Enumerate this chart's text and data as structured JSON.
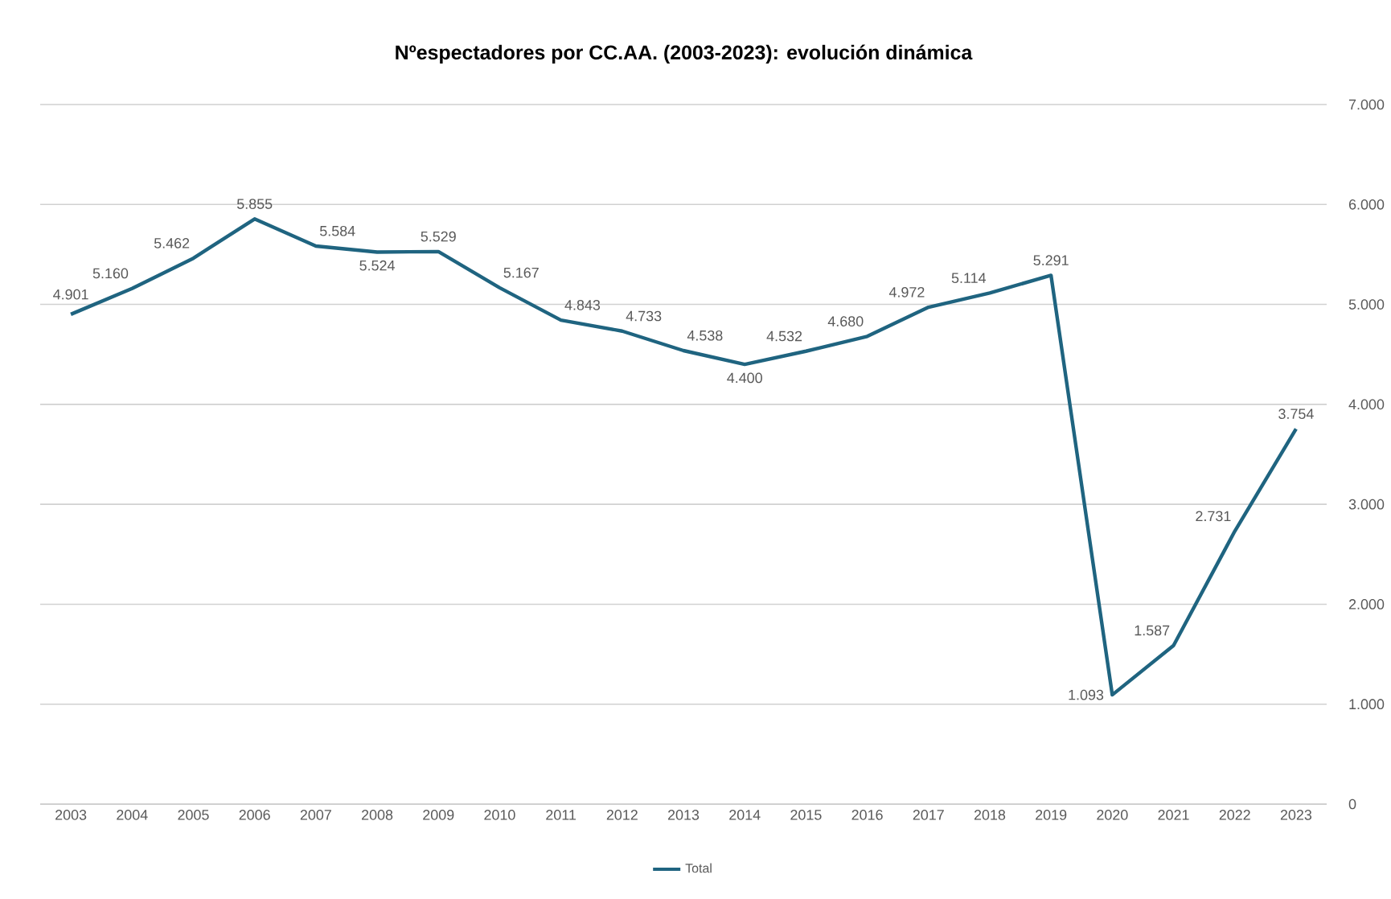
{
  "chart_data": {
    "type": "line",
    "title": "Nºespectadores por CC.AA. (2003-2023): evolución dinámica",
    "categories": [
      "2003",
      "2004",
      "2005",
      "2006",
      "2007",
      "2008",
      "2009",
      "2010",
      "2011",
      "2012",
      "2013",
      "2014",
      "2015",
      "2016",
      "2017",
      "2018",
      "2019",
      "2020",
      "2021",
      "2022",
      "2023"
    ],
    "series": [
      {
        "name": "Total",
        "color": "#1f6480",
        "values": [
          4901,
          5160,
          5462,
          5855,
          5584,
          5524,
          5529,
          5167,
          4843,
          4733,
          4538,
          4400,
          4532,
          4680,
          4972,
          5114,
          5291,
          1093,
          1587,
          2731,
          3754
        ],
        "value_labels": [
          "4.901",
          "5.160",
          "5.462",
          "5.855",
          "5.584",
          "5.524",
          "5.529",
          "5.167",
          "4.843",
          "4.733",
          "4.538",
          "4.400",
          "4.532",
          "4.680",
          "4.972",
          "5.114",
          "5.291",
          "1.093",
          "1.587",
          "2.731",
          "3.754"
        ]
      }
    ],
    "ylim": [
      0,
      7000
    ],
    "yticks": [
      0,
      {
        "value": 1000,
        "label": "1.000"
      },
      {
        "value": 2000,
        "label": "2.000"
      },
      {
        "value": 3000,
        "label": "3.000"
      },
      {
        "value": 4000,
        "label": "4.000"
      },
      {
        "value": 5000,
        "label": "5.000"
      },
      {
        "value": 6000,
        "label": "6.000"
      },
      {
        "value": 7000,
        "label": "7.000"
      }
    ],
    "grid": "y",
    "legend": "bottom",
    "marker": "none",
    "line_style": "solid"
  }
}
